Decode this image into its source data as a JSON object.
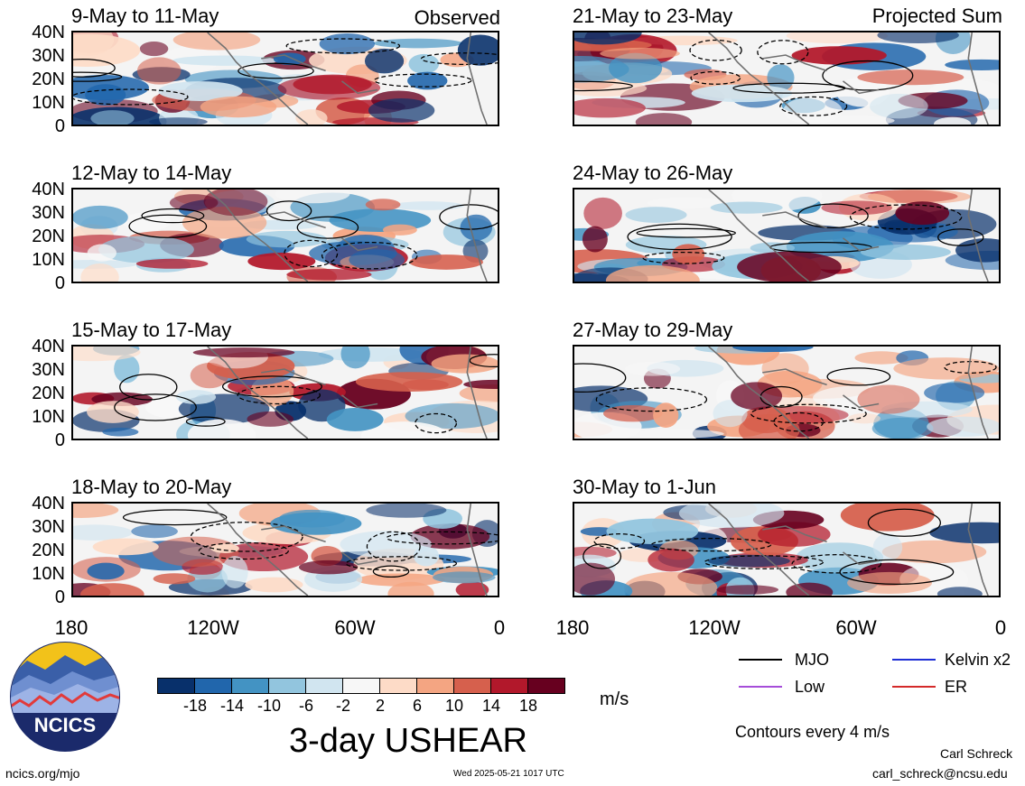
{
  "panels_left": [
    {
      "title": "9-May to 11-May",
      "tag": "Observed"
    },
    {
      "title": "12-May to 14-May",
      "tag": ""
    },
    {
      "title": "15-May to 17-May",
      "tag": ""
    },
    {
      "title": "18-May to 20-May",
      "tag": ""
    }
  ],
  "panels_right": [
    {
      "title": "21-May to 23-May",
      "tag": "Projected Sum"
    },
    {
      "title": "24-May to 26-May",
      "tag": ""
    },
    {
      "title": "27-May to 29-May",
      "tag": ""
    },
    {
      "title": "30-May to 1-Jun",
      "tag": ""
    }
  ],
  "lat_labels": [
    "40N",
    "30N",
    "20N",
    "10N",
    "0"
  ],
  "lon_labels": [
    "180",
    "120W",
    "60W",
    "0"
  ],
  "colorbar": {
    "colors": [
      "#08306b",
      "#2166ac",
      "#4393c3",
      "#92c5de",
      "#d1e5f0",
      "#f7f7f7",
      "#fddbc7",
      "#f4a582",
      "#d6604d",
      "#b2182b",
      "#67001f"
    ],
    "labels": [
      "-18",
      "-14",
      "-10",
      "-6",
      "-2",
      "2",
      "6",
      "10",
      "14",
      "18"
    ],
    "units": "m/s"
  },
  "main_title": "3-day USHEAR",
  "legend": [
    {
      "label": "MJO",
      "color": "#000000"
    },
    {
      "label": "Kelvin x2",
      "color": "#1f2fd6"
    },
    {
      "label": "Low",
      "color": "#a64dd9"
    },
    {
      "label": "ER",
      "color": "#d42a2a"
    }
  ],
  "contours_note": "Contours every 4 m/s",
  "logo_text": "NCICS",
  "footer": {
    "site": "ncics.org/mjo",
    "timestamp": "Wed 2025-05-21 1017 UTC",
    "author": "Carl Schreck",
    "email": "carl_schreck@ncsu.edu"
  }
}
